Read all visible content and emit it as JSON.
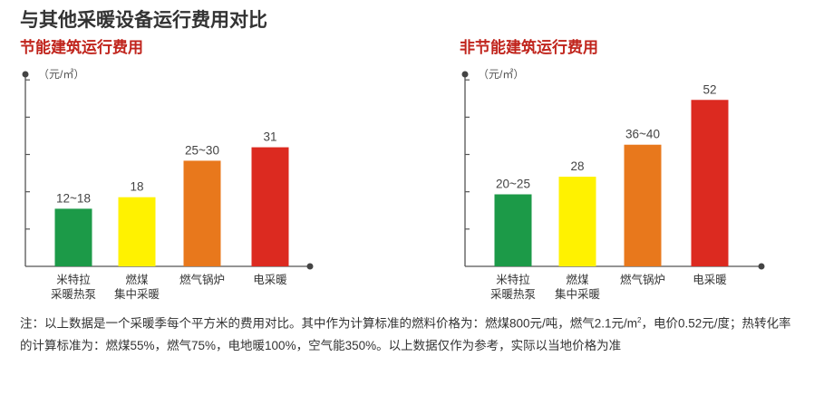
{
  "page": {
    "title": "与其他采暖设备运行费用对比"
  },
  "chart_data": [
    {
      "type": "bar",
      "title": "节能建筑运行费用",
      "ylabel": "（元/㎡）",
      "categories": [
        {
          "line1": "米特拉",
          "line2": "采暖热泵"
        },
        {
          "line1": "燃煤",
          "line2": "集中采暖"
        },
        {
          "line1": "燃气锅炉",
          "line2": ""
        },
        {
          "line1": "电采暖",
          "line2": ""
        }
      ],
      "values": [
        15,
        18,
        27.5,
        31
      ],
      "value_labels": [
        "12~18",
        "18",
        "25~30",
        "31"
      ],
      "colors": [
        "#1c9a48",
        "#fff200",
        "#e8781c",
        "#dc2a20"
      ],
      "ylim": [
        0,
        50
      ]
    },
    {
      "type": "bar",
      "title": "非节能建筑运行费用",
      "ylabel": "（元/㎡）",
      "categories": [
        {
          "line1": "米特拉",
          "line2": "采暖热泵"
        },
        {
          "line1": "燃煤",
          "line2": "集中采暖"
        },
        {
          "line1": "燃气锅炉",
          "line2": ""
        },
        {
          "line1": "电采暖",
          "line2": ""
        }
      ],
      "values": [
        22.5,
        28,
        38,
        52
      ],
      "value_labels": [
        "20~25",
        "28",
        "36~40",
        "52"
      ],
      "colors": [
        "#1c9a48",
        "#fff200",
        "#e8781c",
        "#dc2a20"
      ],
      "ylim": [
        0,
        60
      ]
    }
  ],
  "note": {
    "part1": "注：以上数据是一个采暖季每个平方米的费用对比。其中作为计算标准的燃料价格为：燃煤800元/吨，燃气2.1元/m",
    "sup": "2",
    "part2": "，电价0.52元/度；热转化率的计算标准为：燃煤55%，燃气75%，电地暖100%，空气能350%。以上数据仅作为参考，实际以当地价格为准"
  }
}
